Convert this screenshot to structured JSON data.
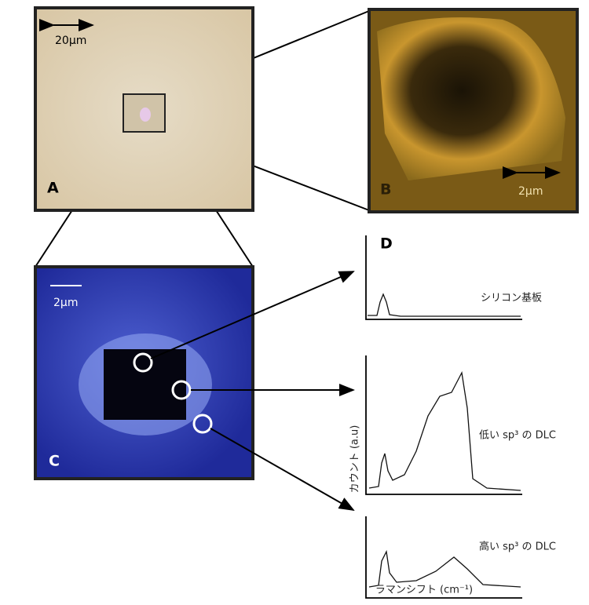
{
  "panels": {
    "a": {
      "label": "A",
      "scale": "20µm"
    },
    "b": {
      "label": "B",
      "scale": "2µm"
    },
    "c": {
      "label": "C",
      "scale": "2µm"
    },
    "d": {
      "label": "D",
      "spectra": [
        "シリコン基板",
        "低い sp³ の DLC",
        "高い sp³ の DLC"
      ],
      "y_axis": "カウント (a.u)",
      "x_axis": "ラマンシフト (cm⁻¹)"
    }
  }
}
